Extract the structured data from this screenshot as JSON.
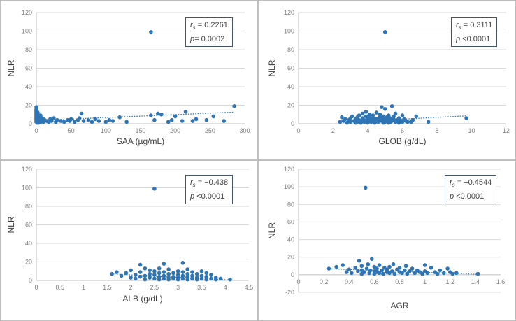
{
  "chart_data": [
    {
      "type": "scatter",
      "xlabel": "SAA (µg/mL)",
      "ylabel": "NLR",
      "xlim": [
        0,
        300
      ],
      "xstep": 50,
      "ylim": [
        0,
        120
      ],
      "ystep": 20,
      "xtick_labels": [
        "0",
        "50",
        "100",
        "150",
        "200",
        "250",
        "300"
      ],
      "ytick_labels": [
        "0",
        "20",
        "40",
        "60",
        "80",
        "100",
        "120"
      ],
      "stat_r_label": "r",
      "stat_r_sub": "s",
      "stat_r": "= 0.2261",
      "stat_p_label": "p",
      "stat_p": "= 0.0002",
      "trendline": [
        [
          0,
          3.5
        ],
        [
          285,
          12.5
        ]
      ],
      "points": [
        [
          0,
          2
        ],
        [
          0,
          3
        ],
        [
          0,
          4
        ],
        [
          0,
          5
        ],
        [
          0,
          6
        ],
        [
          0,
          7
        ],
        [
          0,
          8
        ],
        [
          0,
          9
        ],
        [
          0,
          10
        ],
        [
          0,
          11
        ],
        [
          0,
          12
        ],
        [
          0,
          13
        ],
        [
          0,
          14
        ],
        [
          0,
          15
        ],
        [
          0,
          16
        ],
        [
          0,
          18
        ],
        [
          1,
          1
        ],
        [
          1,
          3
        ],
        [
          1,
          5
        ],
        [
          1,
          7
        ],
        [
          1,
          9
        ],
        [
          1,
          11
        ],
        [
          1,
          13
        ],
        [
          2,
          2
        ],
        [
          2,
          4
        ],
        [
          2,
          6
        ],
        [
          2,
          8
        ],
        [
          2,
          10
        ],
        [
          2,
          12
        ],
        [
          3,
          1
        ],
        [
          3,
          3
        ],
        [
          3,
          5
        ],
        [
          3,
          7
        ],
        [
          3,
          9
        ],
        [
          4,
          2
        ],
        [
          4,
          4
        ],
        [
          4,
          6
        ],
        [
          4,
          8
        ],
        [
          5,
          3
        ],
        [
          5,
          5
        ],
        [
          5,
          7
        ],
        [
          6,
          2
        ],
        [
          6,
          4
        ],
        [
          6,
          9
        ],
        [
          8,
          3
        ],
        [
          8,
          6
        ],
        [
          10,
          2
        ],
        [
          10,
          5
        ],
        [
          12,
          4
        ],
        [
          15,
          3
        ],
        [
          18,
          2
        ],
        [
          20,
          5
        ],
        [
          22,
          3
        ],
        [
          25,
          6
        ],
        [
          28,
          2
        ],
        [
          30,
          4
        ],
        [
          35,
          3
        ],
        [
          40,
          2
        ],
        [
          45,
          4
        ],
        [
          48,
          3
        ],
        [
          50,
          5
        ],
        [
          55,
          2
        ],
        [
          60,
          4
        ],
        [
          62,
          6
        ],
        [
          65,
          11
        ],
        [
          68,
          3
        ],
        [
          75,
          4
        ],
        [
          80,
          2
        ],
        [
          85,
          5
        ],
        [
          90,
          3
        ],
        [
          100,
          2
        ],
        [
          105,
          4
        ],
        [
          110,
          3
        ],
        [
          120,
          7
        ],
        [
          130,
          2
        ],
        [
          165,
          99
        ],
        [
          165,
          9
        ],
        [
          170,
          4
        ],
        [
          175,
          11
        ],
        [
          180,
          10
        ],
        [
          190,
          2
        ],
        [
          195,
          4
        ],
        [
          200,
          8
        ],
        [
          210,
          3
        ],
        [
          215,
          13
        ],
        [
          225,
          3
        ],
        [
          230,
          5
        ],
        [
          245,
          4
        ],
        [
          255,
          8
        ],
        [
          270,
          3
        ],
        [
          285,
          19
        ]
      ]
    },
    {
      "type": "scatter",
      "xlabel": "GLOB (g/dL)",
      "ylabel": "NLR",
      "xlim": [
        0,
        12
      ],
      "xstep": 2,
      "ylim": [
        0,
        120
      ],
      "ystep": 20,
      "xtick_labels": [
        "0",
        "2",
        "4",
        "6",
        "8",
        "10",
        "12"
      ],
      "ytick_labels": [
        "0",
        "20",
        "40",
        "60",
        "80",
        "100",
        "120"
      ],
      "stat_r_label": "r",
      "stat_r_sub": "s",
      "stat_r": "= 0.3111",
      "stat_p_label": "p",
      "stat_p": "<0.0001",
      "trendline": [
        [
          2.4,
          1.5
        ],
        [
          9.7,
          8.5
        ]
      ],
      "points": [
        [
          2.4,
          2
        ],
        [
          2.5,
          7
        ],
        [
          2.6,
          3
        ],
        [
          2.7,
          5
        ],
        [
          2.8,
          1
        ],
        [
          2.9,
          4
        ],
        [
          3.0,
          2
        ],
        [
          3.0,
          6
        ],
        [
          3.1,
          8
        ],
        [
          3.2,
          3
        ],
        [
          3.3,
          1
        ],
        [
          3.3,
          5
        ],
        [
          3.4,
          2
        ],
        [
          3.4,
          7
        ],
        [
          3.5,
          4
        ],
        [
          3.5,
          9
        ],
        [
          3.6,
          1
        ],
        [
          3.6,
          3
        ],
        [
          3.7,
          6
        ],
        [
          3.7,
          11
        ],
        [
          3.8,
          2
        ],
        [
          3.8,
          4
        ],
        [
          3.9,
          8
        ],
        [
          3.9,
          13
        ],
        [
          4.0,
          1
        ],
        [
          4.0,
          3
        ],
        [
          4.0,
          5
        ],
        [
          4.1,
          7
        ],
        [
          4.1,
          10
        ],
        [
          4.2,
          2
        ],
        [
          4.2,
          4
        ],
        [
          4.3,
          6
        ],
        [
          4.3,
          9
        ],
        [
          4.4,
          1
        ],
        [
          4.4,
          3
        ],
        [
          4.5,
          5
        ],
        [
          4.5,
          12
        ],
        [
          4.6,
          2
        ],
        [
          4.6,
          4
        ],
        [
          4.7,
          7
        ],
        [
          4.7,
          10
        ],
        [
          4.8,
          3
        ],
        [
          4.8,
          6
        ],
        [
          4.8,
          18
        ],
        [
          4.9,
          1
        ],
        [
          4.9,
          4
        ],
        [
          4.9,
          8
        ],
        [
          5.0,
          99
        ],
        [
          5.0,
          2
        ],
        [
          5.0,
          5
        ],
        [
          5.0,
          16
        ],
        [
          5.1,
          3
        ],
        [
          5.1,
          7
        ],
        [
          5.2,
          1
        ],
        [
          5.2,
          4
        ],
        [
          5.2,
          9
        ],
        [
          5.3,
          2
        ],
        [
          5.3,
          6
        ],
        [
          5.4,
          3
        ],
        [
          5.4,
          19
        ],
        [
          5.5,
          5
        ],
        [
          5.5,
          8
        ],
        [
          5.6,
          2
        ],
        [
          5.6,
          11
        ],
        [
          5.7,
          4
        ],
        [
          5.8,
          1
        ],
        [
          5.8,
          6
        ],
        [
          5.9,
          3
        ],
        [
          6.0,
          2
        ],
        [
          6.0,
          9
        ],
        [
          6.1,
          5
        ],
        [
          6.2,
          3
        ],
        [
          6.3,
          2
        ],
        [
          6.5,
          2
        ],
        [
          6.6,
          4
        ],
        [
          6.8,
          8
        ],
        [
          7.5,
          2
        ],
        [
          9.7,
          6
        ]
      ]
    },
    {
      "type": "scatter",
      "xlabel": "ALB (g/dL)",
      "ylabel": "NLR",
      "xlim": [
        0,
        4.5
      ],
      "xstep": 0.5,
      "ylim": [
        0,
        120
      ],
      "ystep": 20,
      "xtick_labels": [
        "0",
        "0.5",
        "1",
        "1.5",
        "2",
        "2.5",
        "3",
        "3.5",
        "4",
        "4.5"
      ],
      "ytick_labels": [
        "0",
        "20",
        "40",
        "60",
        "80",
        "100",
        "120"
      ],
      "stat_r_label": "r",
      "stat_r_sub": "s",
      "stat_r": "= −0.438",
      "stat_p_label": "p",
      "stat_p": "<0.0001",
      "trendline": [
        [
          1.6,
          7
        ],
        [
          4.1,
          0.5
        ]
      ],
      "points": [
        [
          1.6,
          7
        ],
        [
          1.7,
          9
        ],
        [
          1.8,
          5
        ],
        [
          1.9,
          8
        ],
        [
          2.0,
          3
        ],
        [
          2.0,
          11
        ],
        [
          2.1,
          2
        ],
        [
          2.1,
          6
        ],
        [
          2.2,
          4
        ],
        [
          2.2,
          9
        ],
        [
          2.2,
          17
        ],
        [
          2.3,
          1
        ],
        [
          2.3,
          5
        ],
        [
          2.3,
          13
        ],
        [
          2.4,
          3
        ],
        [
          2.4,
          7
        ],
        [
          2.4,
          11
        ],
        [
          2.5,
          99
        ],
        [
          2.5,
          2
        ],
        [
          2.5,
          6
        ],
        [
          2.5,
          10
        ],
        [
          2.6,
          1
        ],
        [
          2.6,
          4
        ],
        [
          2.6,
          8
        ],
        [
          2.6,
          13
        ],
        [
          2.7,
          2
        ],
        [
          2.7,
          5
        ],
        [
          2.7,
          9
        ],
        [
          2.7,
          18
        ],
        [
          2.8,
          1
        ],
        [
          2.8,
          3
        ],
        [
          2.8,
          7
        ],
        [
          2.8,
          12
        ],
        [
          2.9,
          2
        ],
        [
          2.9,
          4
        ],
        [
          2.9,
          8
        ],
        [
          3.0,
          1
        ],
        [
          3.0,
          3
        ],
        [
          3.0,
          6
        ],
        [
          3.0,
          10
        ],
        [
          3.1,
          2
        ],
        [
          3.1,
          5
        ],
        [
          3.1,
          9
        ],
        [
          3.1,
          19
        ],
        [
          3.2,
          1
        ],
        [
          3.2,
          4
        ],
        [
          3.2,
          7
        ],
        [
          3.2,
          12
        ],
        [
          3.3,
          2
        ],
        [
          3.3,
          5
        ],
        [
          3.3,
          9
        ],
        [
          3.4,
          1
        ],
        [
          3.4,
          3
        ],
        [
          3.4,
          7
        ],
        [
          3.5,
          2
        ],
        [
          3.5,
          5
        ],
        [
          3.5,
          10
        ],
        [
          3.6,
          1
        ],
        [
          3.6,
          4
        ],
        [
          3.6,
          8
        ],
        [
          3.7,
          2
        ],
        [
          3.7,
          6
        ],
        [
          3.8,
          1
        ],
        [
          3.8,
          3
        ],
        [
          3.9,
          2
        ],
        [
          4.1,
          1
        ]
      ]
    },
    {
      "type": "scatter",
      "xlabel": "AGR",
      "ylabel": "NLR",
      "xlim": [
        0,
        1.6
      ],
      "xstep": 0.2,
      "ylim": [
        -20,
        120
      ],
      "ystep": 20,
      "xtick_labels": [
        "0",
        "0.2",
        "0.4",
        "0.6",
        "0.8",
        "1",
        "1.2",
        "1.4",
        "1.6"
      ],
      "ytick_labels": [
        "-20",
        "0",
        "20",
        "40",
        "60",
        "80",
        "100",
        "120"
      ],
      "stat_r_label": "r",
      "stat_r_sub": "s",
      "stat_r": "= −0.4544",
      "stat_p_label": "p",
      "stat_p": "<0.0001",
      "trendline": [
        [
          0.22,
          7
        ],
        [
          1.42,
          0.5
        ]
      ],
      "points": [
        [
          0.24,
          7
        ],
        [
          0.3,
          9
        ],
        [
          0.35,
          11
        ],
        [
          0.38,
          3
        ],
        [
          0.4,
          6
        ],
        [
          0.42,
          2
        ],
        [
          0.45,
          8
        ],
        [
          0.47,
          4
        ],
        [
          0.48,
          16
        ],
        [
          0.5,
          1
        ],
        [
          0.5,
          5
        ],
        [
          0.5,
          10
        ],
        [
          0.52,
          3
        ],
        [
          0.53,
          99
        ],
        [
          0.54,
          7
        ],
        [
          0.55,
          12
        ],
        [
          0.56,
          2
        ],
        [
          0.57,
          5
        ],
        [
          0.58,
          18
        ],
        [
          0.6,
          1
        ],
        [
          0.6,
          4
        ],
        [
          0.6,
          9
        ],
        [
          0.62,
          3
        ],
        [
          0.62,
          7
        ],
        [
          0.64,
          2
        ],
        [
          0.64,
          11
        ],
        [
          0.66,
          5
        ],
        [
          0.67,
          1
        ],
        [
          0.68,
          8
        ],
        [
          0.7,
          3
        ],
        [
          0.7,
          6
        ],
        [
          0.72,
          2
        ],
        [
          0.72,
          9
        ],
        [
          0.74,
          4
        ],
        [
          0.75,
          12
        ],
        [
          0.76,
          1
        ],
        [
          0.78,
          6
        ],
        [
          0.8,
          3
        ],
        [
          0.8,
          8
        ],
        [
          0.82,
          2
        ],
        [
          0.84,
          5
        ],
        [
          0.85,
          10
        ],
        [
          0.86,
          1
        ],
        [
          0.88,
          4
        ],
        [
          0.9,
          7
        ],
        [
          0.92,
          2
        ],
        [
          0.94,
          5
        ],
        [
          0.96,
          3
        ],
        [
          0.98,
          1
        ],
        [
          1.0,
          4
        ],
        [
          1.0,
          11
        ],
        [
          1.02,
          2
        ],
        [
          1.05,
          8
        ],
        [
          1.08,
          3
        ],
        [
          1.1,
          1
        ],
        [
          1.12,
          5
        ],
        [
          1.15,
          2
        ],
        [
          1.18,
          7
        ],
        [
          1.2,
          3
        ],
        [
          1.22,
          1
        ],
        [
          1.25,
          2
        ],
        [
          1.42,
          1
        ]
      ]
    }
  ]
}
